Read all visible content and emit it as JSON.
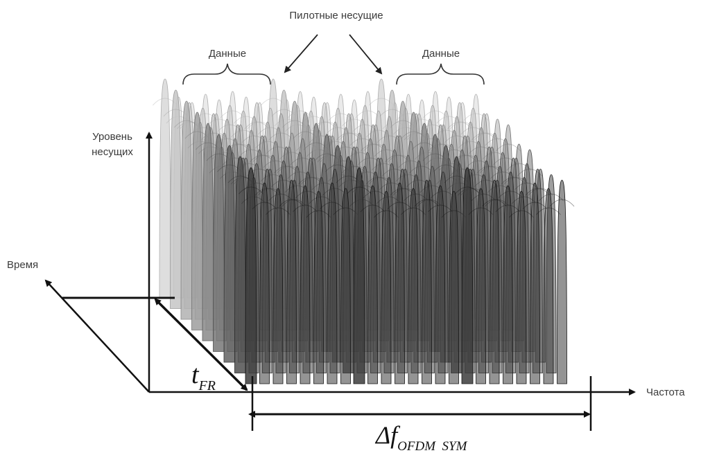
{
  "labels": {
    "pilot_carriers": "Пилотные несущие",
    "data_left": "Данные",
    "data_right": "Данные",
    "carrier_level_line1": "Уровень",
    "carrier_level_line2": "несущих",
    "time": "Время",
    "frequency": "Частота"
  },
  "symbols": {
    "t_main": "t",
    "t_sub": "FR",
    "df_main": "Δf",
    "df_sub": "OFDM  SYM"
  },
  "colors": {
    "axis": "#111111",
    "carrier_back": "#d8d8d8",
    "carrier_front": "#3c3c3c",
    "pilot": "#5a5a5a"
  }
}
